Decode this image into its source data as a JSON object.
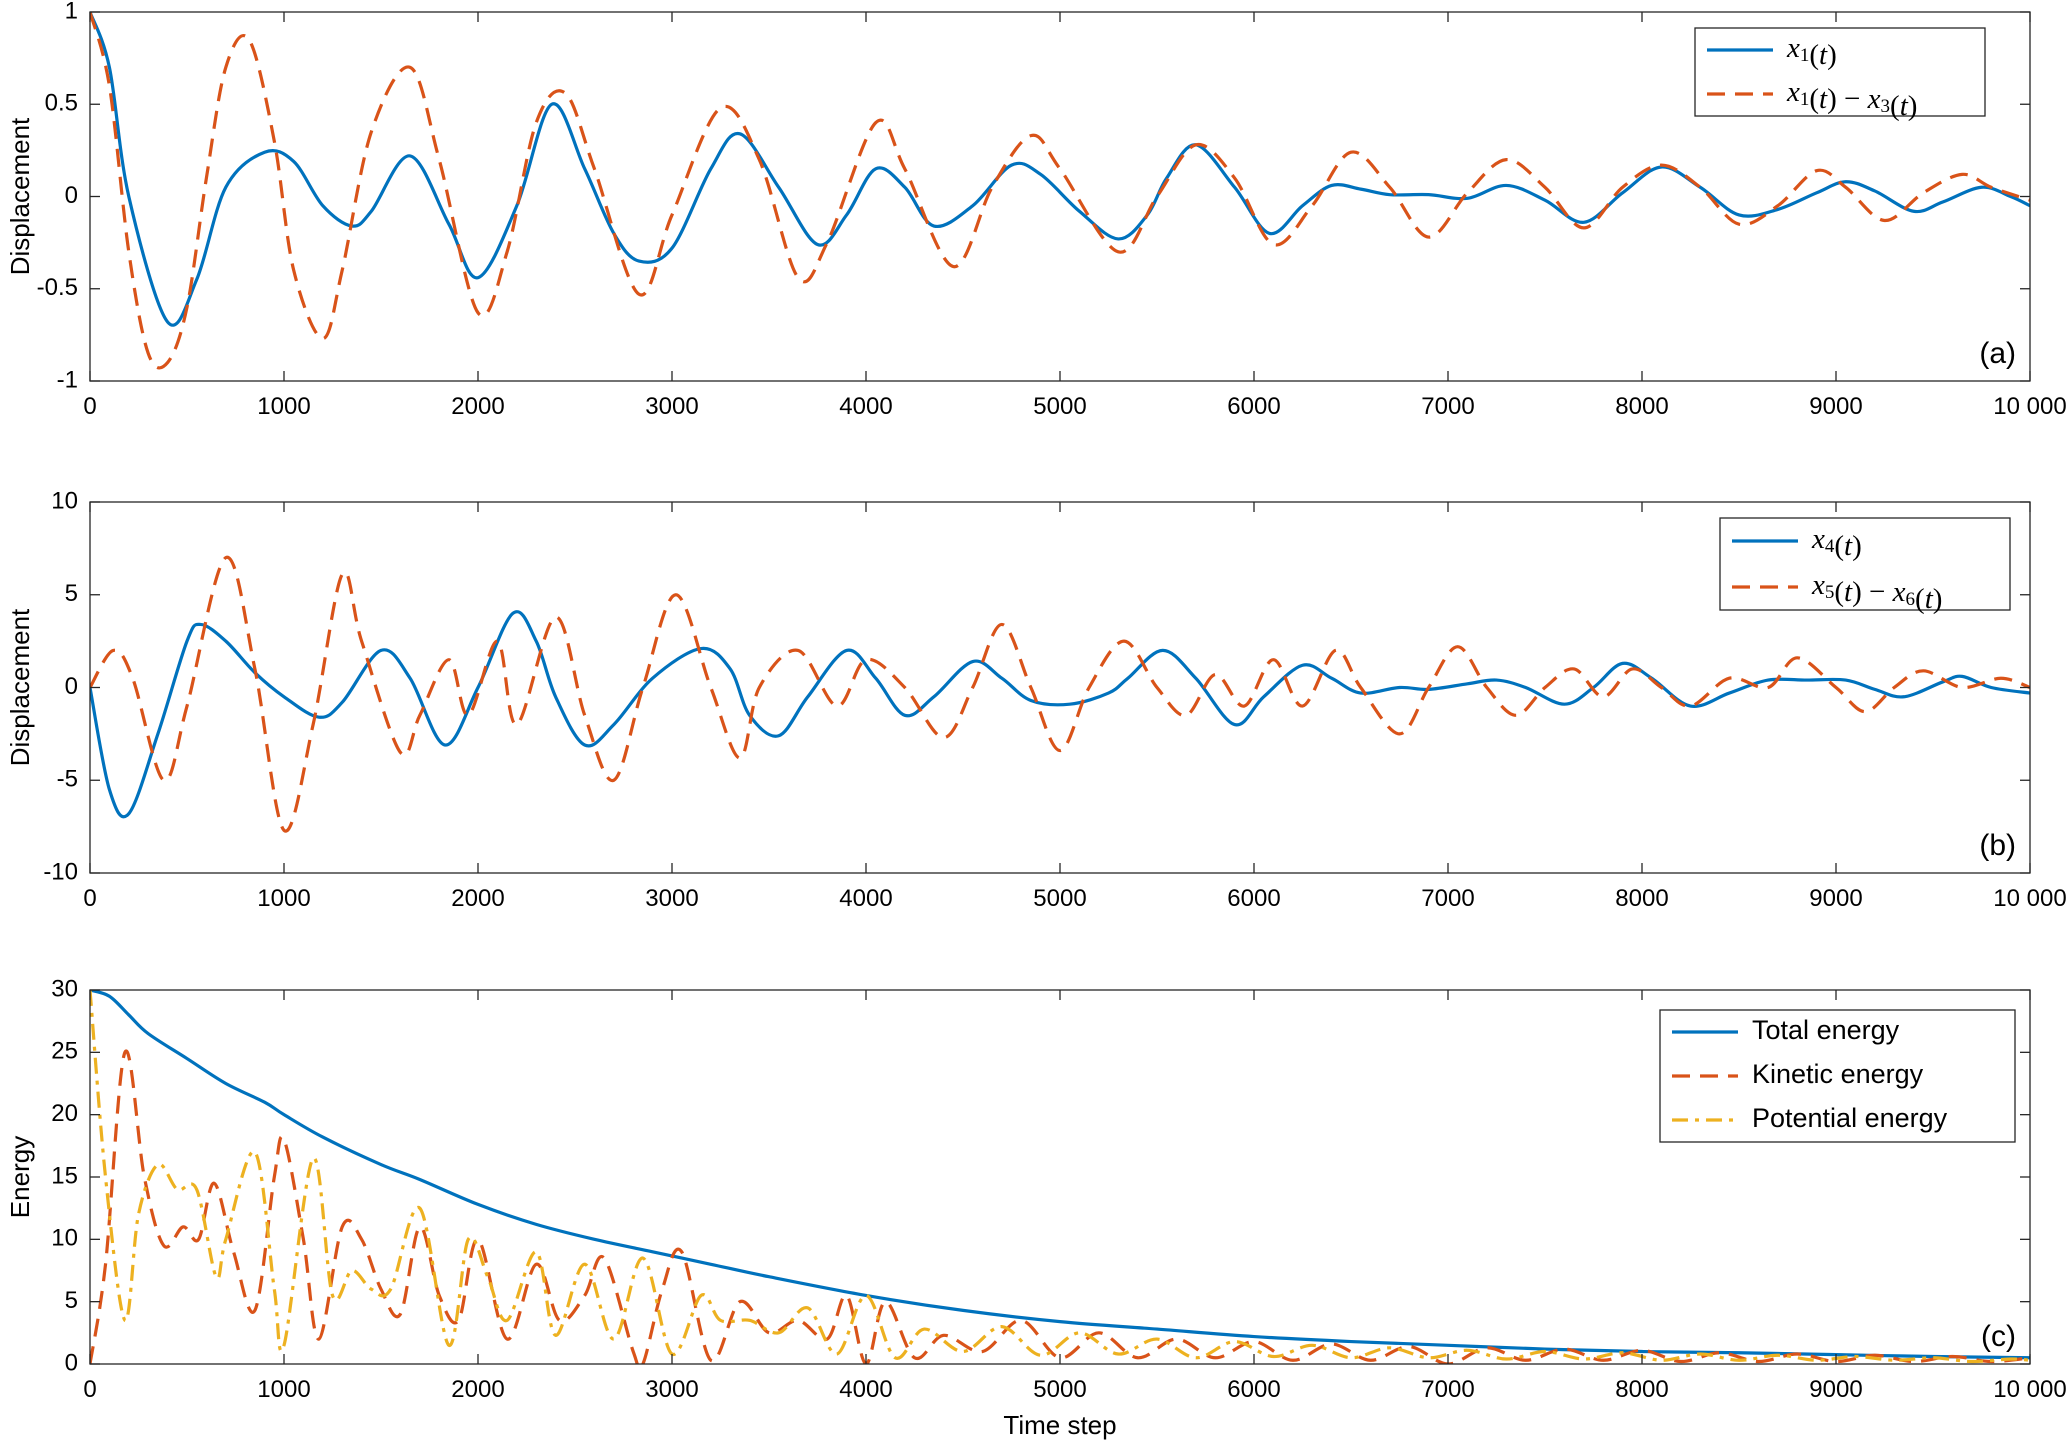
{
  "chart_data": [
    {
      "type": "line",
      "panel_label": "(a)",
      "xlabel": "",
      "ylabel": "Displacement",
      "xlim": [
        0,
        10000
      ],
      "ylim": [
        -1,
        1
      ],
      "xticks": [
        0,
        1000,
        2000,
        3000,
        4000,
        5000,
        6000,
        7000,
        8000,
        9000,
        10000
      ],
      "xtick_labels": [
        "0",
        "1000",
        "2000",
        "3000",
        "4000",
        "5000",
        "6000",
        "7000",
        "8000",
        "9000",
        "10 000"
      ],
      "yticks": [
        -1,
        -0.5,
        0,
        0.5,
        1
      ],
      "ytick_labels": [
        "-1",
        "-0.5",
        "0",
        "0.5",
        "1"
      ],
      "grid": false,
      "legend": "top-right",
      "series": [
        {
          "name": "x1(t)",
          "legend_label": "x₁(t)",
          "color": "#0072BD",
          "style": "solid",
          "x": [
            0,
            100,
            200,
            400,
            550,
            700,
            900,
            1050,
            1200,
            1350,
            1450,
            1650,
            1850,
            2000,
            2200,
            2380,
            2550,
            2700,
            2830,
            3000,
            3200,
            3350,
            3550,
            3750,
            3900,
            4050,
            4200,
            4350,
            4550,
            4750,
            4900,
            5100,
            5300,
            5450,
            5550,
            5700,
            5900,
            6080,
            6250,
            6400,
            6550,
            6700,
            6900,
            7100,
            7300,
            7500,
            7700,
            7900,
            8100,
            8300,
            8500,
            8700,
            8900,
            9050,
            9200,
            9400,
            9550,
            9750,
            9900,
            10000
          ],
          "y": [
            1,
            0.7,
            0,
            -0.68,
            -0.45,
            0.05,
            0.24,
            0.19,
            -0.05,
            -0.16,
            -0.08,
            0.22,
            -0.15,
            -0.44,
            -0.05,
            0.5,
            0.15,
            -0.2,
            -0.35,
            -0.28,
            0.15,
            0.34,
            0.05,
            -0.26,
            -0.1,
            0.15,
            0.05,
            -0.16,
            -0.05,
            0.17,
            0.12,
            -0.08,
            -0.23,
            -0.1,
            0.1,
            0.28,
            0.05,
            -0.2,
            -0.05,
            0.06,
            0.04,
            0.01,
            0.01,
            -0.01,
            0.06,
            -0.02,
            -0.14,
            0.02,
            0.16,
            0.05,
            -0.1,
            -0.07,
            0.02,
            0.08,
            0.03,
            -0.08,
            -0.03,
            0.05,
            0.0,
            -0.05
          ]
        },
        {
          "name": "x1(t) - x3(t)",
          "legend_label": "x₁(t) − x₃(t)",
          "color": "#D95319",
          "style": "dashed",
          "x": [
            0,
            100,
            200,
            300,
            400,
            500,
            600,
            700,
            820,
            950,
            1050,
            1200,
            1300,
            1450,
            1650,
            1800,
            2000,
            2150,
            2300,
            2450,
            2600,
            2830,
            3000,
            3250,
            3450,
            3650,
            3800,
            4050,
            4200,
            4450,
            4650,
            4850,
            5000,
            5300,
            5500,
            5700,
            5900,
            6100,
            6300,
            6500,
            6700,
            6900,
            7100,
            7300,
            7500,
            7700,
            7900,
            8100,
            8300,
            8500,
            8700,
            8900,
            9050,
            9250,
            9450,
            9650,
            9800,
            10000
          ],
          "y": [
            1,
            0.6,
            -0.3,
            -0.85,
            -0.9,
            -0.6,
            0.1,
            0.7,
            0.85,
            0.3,
            -0.4,
            -0.77,
            -0.4,
            0.35,
            0.7,
            0.2,
            -0.63,
            -0.3,
            0.4,
            0.56,
            0.15,
            -0.53,
            -0.1,
            0.48,
            0.2,
            -0.44,
            -0.25,
            0.4,
            0.15,
            -0.38,
            0.05,
            0.33,
            0.15,
            -0.3,
            0.0,
            0.28,
            0.1,
            -0.26,
            -0.05,
            0.24,
            0.05,
            -0.22,
            0.02,
            0.2,
            0.05,
            -0.17,
            0.05,
            0.17,
            0.05,
            -0.15,
            -0.05,
            0.14,
            0.05,
            -0.13,
            0.02,
            0.12,
            0.05,
            -0.02
          ]
        }
      ]
    },
    {
      "type": "line",
      "panel_label": "(b)",
      "xlabel": "",
      "ylabel": "Displacement",
      "xlim": [
        0,
        10000
      ],
      "ylim": [
        -10,
        10
      ],
      "xticks": [
        0,
        1000,
        2000,
        3000,
        4000,
        5000,
        6000,
        7000,
        8000,
        9000,
        10000
      ],
      "xtick_labels": [
        "0",
        "1000",
        "2000",
        "3000",
        "4000",
        "5000",
        "6000",
        "7000",
        "8000",
        "9000",
        "10 000"
      ],
      "yticks": [
        -10,
        -5,
        0,
        5,
        10
      ],
      "ytick_labels": [
        "-10",
        "-5",
        "0",
        "5",
        "10"
      ],
      "grid": false,
      "legend": "top-right",
      "series": [
        {
          "name": "x4(t)",
          "legend_label": "x₄(t)",
          "color": "#0072BD",
          "style": "solid",
          "x": [
            0,
            100,
            200,
            350,
            500,
            570,
            700,
            850,
            1000,
            1180,
            1300,
            1500,
            1650,
            1830,
            2000,
            2180,
            2300,
            2400,
            2550,
            2700,
            2900,
            3150,
            3300,
            3400,
            3550,
            3700,
            3900,
            4050,
            4200,
            4350,
            4550,
            4700,
            4850,
            5050,
            5250,
            5350,
            5530,
            5700,
            5900,
            6050,
            6250,
            6400,
            6550,
            6750,
            6900,
            7100,
            7250,
            7400,
            7600,
            7750,
            7900,
            8050,
            8250,
            8450,
            8650,
            8850,
            9050,
            9200,
            9350,
            9550,
            9650,
            9800,
            10000
          ],
          "y": [
            0,
            -5.5,
            -6.8,
            -2.5,
            2.5,
            3.4,
            2.5,
            0.8,
            -0.5,
            -1.6,
            -0.8,
            2.0,
            0.5,
            -3.1,
            0.0,
            4.0,
            2.5,
            -0.5,
            -3.1,
            -2.0,
            0.5,
            2.1,
            1.0,
            -1.5,
            -2.6,
            -0.5,
            2.0,
            0.5,
            -1.5,
            -0.5,
            1.4,
            0.5,
            -0.7,
            -0.9,
            -0.3,
            0.5,
            2.0,
            0.5,
            -2.0,
            -0.5,
            1.2,
            0.5,
            -0.3,
            0.0,
            -0.1,
            0.2,
            0.4,
            0.0,
            -0.9,
            0.0,
            1.3,
            0.5,
            -1.0,
            -0.3,
            0.4,
            0.4,
            0.4,
            -0.1,
            -0.5,
            0.3,
            0.6,
            0.0,
            -0.3
          ]
        },
        {
          "name": "x5(t) - x6(t)",
          "legend_label": "x₅(t) − x₆(t)",
          "color": "#D95319",
          "style": "dashed",
          "x": [
            0,
            120,
            220,
            380,
            500,
            700,
            850,
            1000,
            1150,
            1300,
            1400,
            1600,
            1700,
            1850,
            1950,
            2100,
            2200,
            2400,
            2550,
            2700,
            2850,
            3020,
            3200,
            3350,
            3450,
            3650,
            3850,
            4000,
            4200,
            4400,
            4550,
            4700,
            4850,
            5000,
            5150,
            5330,
            5500,
            5650,
            5800,
            5950,
            6100,
            6250,
            6420,
            6550,
            6750,
            6900,
            7050,
            7200,
            7350,
            7500,
            7650,
            7800,
            7950,
            8100,
            8250,
            8450,
            8650,
            8800,
            9000,
            9150,
            9300,
            9450,
            9650,
            9850,
            10000
          ],
          "y": [
            0,
            2.0,
            0.5,
            -5.0,
            -1.0,
            7.0,
            1.0,
            -7.7,
            -2.0,
            6.1,
            2.5,
            -3.5,
            -1.5,
            1.5,
            -1.5,
            2.5,
            -2.0,
            3.8,
            -1.5,
            -5.0,
            0.0,
            5.0,
            0.0,
            -3.8,
            0.0,
            2.0,
            -1.0,
            1.5,
            0.0,
            -2.7,
            0.0,
            3.4,
            0.0,
            -3.4,
            0.0,
            2.5,
            0.0,
            -1.5,
            0.7,
            -1.0,
            1.5,
            -1.0,
            2.0,
            0.0,
            -2.5,
            0.0,
            2.2,
            0.0,
            -1.5,
            0.0,
            1.0,
            -0.5,
            1.0,
            0.0,
            -1.0,
            0.5,
            0.0,
            1.6,
            0.0,
            -1.3,
            0.0,
            0.9,
            0.0,
            0.5,
            0.0
          ]
        }
      ]
    },
    {
      "type": "line",
      "panel_label": "(c)",
      "xlabel": "Time step",
      "ylabel": "Energy",
      "xlim": [
        0,
        10000
      ],
      "ylim": [
        0,
        30
      ],
      "xticks": [
        0,
        1000,
        2000,
        3000,
        4000,
        5000,
        6000,
        7000,
        8000,
        9000,
        10000
      ],
      "xtick_labels": [
        "0",
        "1000",
        "2000",
        "3000",
        "4000",
        "5000",
        "6000",
        "7000",
        "8000",
        "9000",
        "10 000"
      ],
      "yticks": [
        0,
        5,
        10,
        15,
        20,
        25,
        30
      ],
      "ytick_labels": [
        "0",
        "5",
        "10",
        "15",
        "20",
        "25",
        "30"
      ],
      "grid": false,
      "legend": "top-right",
      "series": [
        {
          "name": "Total energy",
          "legend_label": "Total energy",
          "color": "#0072BD",
          "style": "solid",
          "x": [
            0,
            100,
            200,
            300,
            500,
            700,
            900,
            1000,
            1200,
            1500,
            1700,
            2000,
            2300,
            2600,
            2900,
            3200,
            3500,
            4000,
            4500,
            5000,
            5500,
            6000,
            6500,
            7000,
            7500,
            8000,
            8500,
            9000,
            9500,
            10000
          ],
          "y": [
            30,
            29.5,
            28,
            26.5,
            24.5,
            22.5,
            21,
            20,
            18.2,
            16,
            14.8,
            12.8,
            11.2,
            10,
            9,
            8,
            7,
            5.5,
            4.3,
            3.4,
            2.8,
            2.2,
            1.8,
            1.5,
            1.2,
            1.0,
            0.9,
            0.75,
            0.6,
            0.5
          ]
        },
        {
          "name": "Kinetic energy",
          "legend_label": "Kinetic energy",
          "color": "#D95319",
          "style": "dashed",
          "x": [
            0,
            80,
            180,
            280,
            380,
            480,
            560,
            640,
            740,
            850,
            950,
            1000,
            1100,
            1180,
            1300,
            1400,
            1500,
            1600,
            1700,
            1800,
            1900,
            2000,
            2150,
            2300,
            2420,
            2550,
            2650,
            2800,
            2850,
            2950,
            3050,
            3200,
            3350,
            3500,
            3650,
            3800,
            3900,
            4000,
            4100,
            4250,
            4400,
            4600,
            4800,
            5000,
            5200,
            5400,
            5600,
            5800,
            6000,
            6200,
            6400,
            6600,
            6800,
            7000,
            7200,
            7400,
            7600,
            7800,
            8000,
            8200,
            8400,
            8600,
            8800,
            9000,
            9200,
            9400,
            9600,
            9800,
            10000
          ],
          "y": [
            0,
            8,
            25,
            15,
            9.5,
            11,
            10,
            14.5,
            9,
            4.3,
            15,
            18,
            10,
            2.0,
            11,
            10,
            6,
            4.0,
            11,
            5.5,
            3.5,
            10,
            2.0,
            8,
            3.5,
            5.5,
            8.5,
            1.0,
            0.0,
            6,
            9,
            0.3,
            5,
            2.5,
            3.5,
            2.0,
            5.5,
            0.0,
            5,
            0.5,
            2.3,
            1.0,
            3.5,
            0.5,
            2.5,
            0.5,
            2.0,
            0.5,
            1.8,
            0.3,
            1.6,
            0.3,
            1.4,
            0.0,
            1.3,
            0.3,
            1.2,
            0.3,
            1.1,
            0.2,
            0.9,
            0.2,
            0.8,
            0.2,
            0.7,
            0.2,
            0.6,
            0.2,
            0.5
          ]
        },
        {
          "name": "Potential energy",
          "legend_label": "Potential energy",
          "color": "#EDB120",
          "style": "dashdot",
          "x": [
            0,
            80,
            180,
            250,
            350,
            450,
            550,
            650,
            700,
            850,
            950,
            1000,
            1150,
            1250,
            1350,
            1450,
            1550,
            1700,
            1850,
            1950,
            2050,
            2150,
            2300,
            2400,
            2550,
            2700,
            2850,
            3000,
            3150,
            3250,
            3400,
            3550,
            3700,
            3850,
            4000,
            4150,
            4300,
            4500,
            4700,
            4900,
            5100,
            5300,
            5500,
            5700,
            5900,
            6100,
            6300,
            6500,
            6700,
            6900,
            7100,
            7300,
            7500,
            7700,
            7900,
            8100,
            8300,
            8500,
            8700,
            8900,
            9100,
            9300,
            9500,
            9700,
            9900,
            10000
          ],
          "y": [
            30,
            15,
            3.5,
            12,
            16,
            14,
            14,
            7,
            10,
            17,
            6,
            1.5,
            16.5,
            5.5,
            7.5,
            6,
            6,
            12.5,
            1.5,
            10,
            7,
            3.5,
            9,
            2.3,
            8,
            2.0,
            8.5,
            0.8,
            5.5,
            3.5,
            3.5,
            2.5,
            4.5,
            0.8,
            5.5,
            0.5,
            2.8,
            1.0,
            3.0,
            0.7,
            2.5,
            0.8,
            2.0,
            0.5,
            1.8,
            0.6,
            1.5,
            0.5,
            1.3,
            0.5,
            1.1,
            0.4,
            1.0,
            0.4,
            0.9,
            0.3,
            0.8,
            0.3,
            0.7,
            0.3,
            0.6,
            0.3,
            0.5,
            0.2,
            0.4,
            0.3
          ]
        }
      ]
    }
  ]
}
